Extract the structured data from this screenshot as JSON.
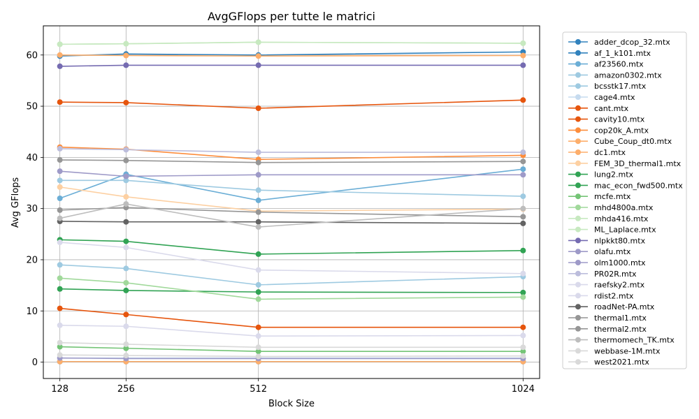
{
  "chart_data": {
    "type": "line",
    "title": "AvgGFlops per tutte le matrici",
    "xlabel": "Block Size",
    "ylabel": "Avg GFlops",
    "x": [
      128,
      256,
      512,
      1024
    ],
    "x_ticks": [
      "128",
      "256",
      "512",
      "1024"
    ],
    "y_ticks": [
      0,
      10,
      20,
      30,
      40,
      50,
      60
    ],
    "ylim": [
      -3.2,
      65.7
    ],
    "grid": true,
    "legend_position": "outside-right",
    "series": [
      {
        "name": "adder_dcop_32.mtx",
        "color": "#3182bd",
        "values": [
          0.1,
          0.1,
          0.1,
          0.1
        ]
      },
      {
        "name": "af_1_k101.mtx",
        "color": "#3182bd",
        "values": [
          59.8,
          60.2,
          60.0,
          60.6
        ]
      },
      {
        "name": "af23560.mtx",
        "color": "#6baed6",
        "values": [
          32.0,
          36.7,
          31.6,
          37.7
        ]
      },
      {
        "name": "amazon0302.mtx",
        "color": "#9ecae1",
        "values": [
          35.5,
          35.5,
          33.6,
          32.4
        ]
      },
      {
        "name": "bcsstk17.mtx",
        "color": "#9ecae1",
        "values": [
          19.0,
          18.3,
          15.1,
          16.7
        ]
      },
      {
        "name": "cage4.mtx",
        "color": "#c6dbef",
        "values": [
          0.8,
          0.8,
          0.8,
          0.8
        ]
      },
      {
        "name": "cant.mtx",
        "color": "#e6550d",
        "values": [
          50.8,
          50.7,
          49.6,
          51.2
        ]
      },
      {
        "name": "cavity10.mtx",
        "color": "#e6550d",
        "values": [
          10.5,
          9.3,
          6.8,
          6.8
        ]
      },
      {
        "name": "cop20k_A.mtx",
        "color": "#fd8d3c",
        "values": [
          42.0,
          41.6,
          39.6,
          40.4
        ]
      },
      {
        "name": "Cube_Coup_dt0.mtx",
        "color": "#fdae6b",
        "values": [
          60.0,
          59.9,
          59.8,
          59.9
        ]
      },
      {
        "name": "dc1.mtx",
        "color": "#fdae6b",
        "values": [
          0.1,
          0.1,
          0.1,
          0.1
        ]
      },
      {
        "name": "FEM_3D_thermal1.mtx",
        "color": "#fdd0a2",
        "values": [
          34.2,
          32.3,
          29.5,
          29.9
        ]
      },
      {
        "name": "lung2.mtx",
        "color": "#31a354",
        "values": [
          23.9,
          23.6,
          21.1,
          21.8
        ]
      },
      {
        "name": "mac_econ_fwd500.mtx",
        "color": "#31a354",
        "values": [
          14.3,
          14.0,
          13.7,
          13.6
        ]
      },
      {
        "name": "mcfe.mtx",
        "color": "#74c476",
        "values": [
          3.0,
          2.7,
          2.1,
          2.1
        ]
      },
      {
        "name": "mhd4800a.mtx",
        "color": "#a1d99b",
        "values": [
          16.4,
          15.5,
          12.3,
          12.7
        ]
      },
      {
        "name": "mhda416.mtx",
        "color": "#c7e9c0",
        "values": [
          62.1,
          62.2,
          62.5,
          62.3
        ]
      },
      {
        "name": "ML_Laplace.mtx",
        "color": "#c7e9c0",
        "values": [
          62.1,
          62.2,
          62.5,
          62.3
        ]
      },
      {
        "name": "nlpkkt80.mtx",
        "color": "#756bb1",
        "values": [
          57.8,
          58.0,
          58.0,
          58.0
        ]
      },
      {
        "name": "olafu.mtx",
        "color": "#9e9ac8",
        "values": [
          37.3,
          36.3,
          36.6,
          36.6
        ]
      },
      {
        "name": "olm1000.mtx",
        "color": "#9e9ac8",
        "values": [
          0.8,
          0.7,
          0.7,
          0.7
        ]
      },
      {
        "name": "PR02R.mtx",
        "color": "#bcbddc",
        "values": [
          41.7,
          41.5,
          41.0,
          41.0
        ]
      },
      {
        "name": "raefsky2.mtx",
        "color": "#dadaeb",
        "values": [
          23.4,
          22.4,
          18.0,
          17.3
        ]
      },
      {
        "name": "rdist2.mtx",
        "color": "#dadaeb",
        "values": [
          7.2,
          7.0,
          5.1,
          5.2
        ]
      },
      {
        "name": "roadNet-PA.mtx",
        "color": "#636363",
        "values": [
          27.5,
          27.4,
          27.4,
          27.1
        ]
      },
      {
        "name": "thermal1.mtx",
        "color": "#969696",
        "values": [
          39.5,
          39.4,
          39.0,
          39.2
        ]
      },
      {
        "name": "thermal2.mtx",
        "color": "#969696",
        "values": [
          29.7,
          30.2,
          29.3,
          28.4
        ]
      },
      {
        "name": "thermomech_TK.mtx",
        "color": "#bdbdbd",
        "values": [
          28.1,
          30.9,
          26.4,
          30.0
        ]
      },
      {
        "name": "webbase-1M.mtx",
        "color": "#d9d9d9",
        "values": [
          3.8,
          3.5,
          2.9,
          2.9
        ]
      },
      {
        "name": "west2021.mtx",
        "color": "#d9d9d9",
        "values": [
          1.4,
          1.3,
          1.1,
          1.2
        ]
      }
    ]
  }
}
